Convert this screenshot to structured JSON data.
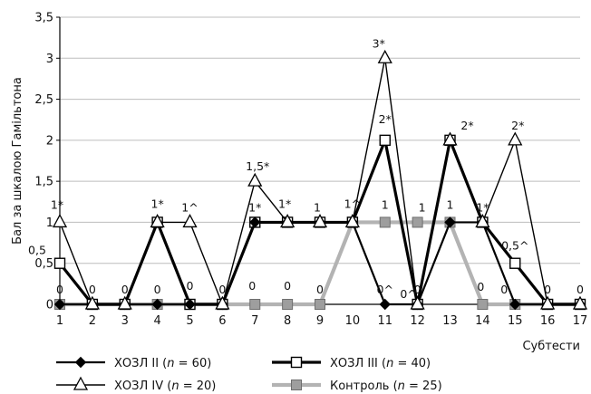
{
  "chart_data": {
    "type": "line",
    "title": "",
    "xlabel": "Субтести",
    "ylabel": "Бал за шкалою Гамільтона",
    "categories": [
      "1",
      "2",
      "3",
      "4",
      "5",
      "6",
      "7",
      "8",
      "9",
      "10",
      "11",
      "12",
      "13",
      "14",
      "15",
      "16",
      "17"
    ],
    "ylim": [
      0,
      3.5
    ],
    "yticks": [
      "0",
      "0,5",
      "1",
      "1,5",
      "2",
      "2,5",
      "3",
      "3,5"
    ],
    "grid": true,
    "legend_position": "bottom",
    "series": [
      {
        "name": "ХОЗЛ II",
        "n_label": "n",
        "n_value": "60",
        "marker": "diamond",
        "color": "#000000",
        "values": [
          0,
          0,
          0,
          0,
          0,
          0,
          1,
          1,
          1,
          1,
          0,
          0,
          1,
          1,
          0,
          0,
          0
        ]
      },
      {
        "name": "ХОЗЛ III",
        "n_label": "n",
        "n_value": "40",
        "marker": "square-open",
        "color": "#000000",
        "values": [
          0.5,
          0,
          0,
          1,
          0,
          0,
          1,
          1,
          1,
          1,
          2,
          0,
          2,
          1,
          0.5,
          0,
          0
        ]
      },
      {
        "name": "ХОЗЛ IV",
        "n_label": "n",
        "n_value": "20",
        "marker": "triangle-open",
        "color": "#000000",
        "values": [
          1,
          0,
          0,
          1,
          1,
          0,
          1.5,
          1,
          1,
          1,
          3,
          0,
          2,
          1,
          2,
          0,
          0
        ]
      },
      {
        "name": "Контроль",
        "n_label": "n",
        "n_value": "25",
        "marker": "square-gray",
        "color": "#b3b3b3",
        "values": [
          0,
          0,
          0,
          0,
          0,
          0,
          0,
          0,
          0,
          1,
          1,
          1,
          1,
          0,
          0,
          0,
          0
        ]
      }
    ],
    "annotations": [
      {
        "x": 1,
        "y": 1,
        "text": "1*"
      },
      {
        "x": 1,
        "y": 0.5,
        "text": "0,5"
      },
      {
        "x": 1,
        "y": 0,
        "text": "0"
      },
      {
        "x": 2,
        "y": 0,
        "text": "0"
      },
      {
        "x": 3,
        "y": 0,
        "text": "0"
      },
      {
        "x": 4,
        "y": 1,
        "text": "1*"
      },
      {
        "x": 4,
        "y": 0,
        "text": "0"
      },
      {
        "x": 5,
        "y": 1,
        "text": "1^"
      },
      {
        "x": 5,
        "y": 0,
        "text": "0"
      },
      {
        "x": 6,
        "y": 0,
        "text": "0"
      },
      {
        "x": 7,
        "y": 1.5,
        "text": "1,5*"
      },
      {
        "x": 7,
        "y": 1,
        "text": "1*"
      },
      {
        "x": 7,
        "y": 0,
        "text": "0"
      },
      {
        "x": 8,
        "y": 1,
        "text": "1*"
      },
      {
        "x": 8,
        "y": 0,
        "text": "0"
      },
      {
        "x": 9,
        "y": 1,
        "text": "1"
      },
      {
        "x": 9,
        "y": 0,
        "text": "0"
      },
      {
        "x": 10,
        "y": 1,
        "text": "1^"
      },
      {
        "x": 11,
        "y": 3,
        "text": "3*"
      },
      {
        "x": 11,
        "y": 2,
        "text": "2*"
      },
      {
        "x": 11,
        "y": 1,
        "text": "1"
      },
      {
        "x": 11,
        "y": 0,
        "text": "0^"
      },
      {
        "x": 12,
        "y": 1,
        "text": "1"
      },
      {
        "x": 12,
        "y": 0,
        "text": "0^"
      },
      {
        "x": 12,
        "y": 0,
        "text": "0"
      },
      {
        "x": 13,
        "y": 2,
        "text": "2*"
      },
      {
        "x": 13,
        "y": 1,
        "text": "1"
      },
      {
        "x": 14,
        "y": 1,
        "text": "1*"
      },
      {
        "x": 14,
        "y": 0,
        "text": "0"
      },
      {
        "x": 15,
        "y": 2,
        "text": "2*"
      },
      {
        "x": 15,
        "y": 0.5,
        "text": "0,5^"
      },
      {
        "x": 15,
        "y": 0,
        "text": "0"
      },
      {
        "x": 16,
        "y": 0,
        "text": "0"
      },
      {
        "x": 17,
        "y": 0,
        "text": "0"
      }
    ]
  }
}
